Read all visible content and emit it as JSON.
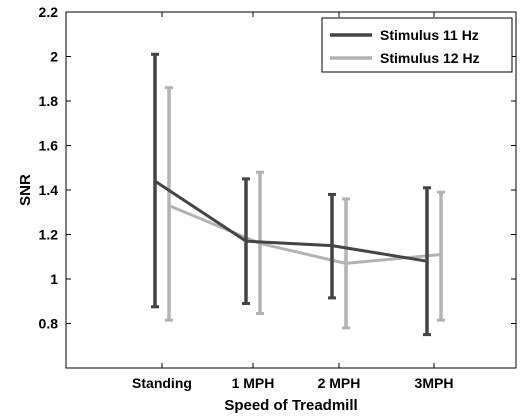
{
  "chart_data": {
    "type": "line",
    "title": "",
    "xlabel": "Speed of Treadmill",
    "ylabel": "SNR",
    "categories": [
      "Standing",
      "1 MPH",
      "2 MPH",
      "3MPH"
    ],
    "ylim": [
      0.6,
      2.2
    ],
    "yticks": [
      0.8,
      1,
      1.2,
      1.4,
      1.6,
      1.8,
      2,
      2.2
    ],
    "ytick_labels": [
      "0.8",
      "1",
      "1.2",
      "1.4",
      "1.6",
      "1.8",
      "2",
      "2.2"
    ],
    "grid": false,
    "legend_position": "top-right",
    "series": [
      {
        "name": "Stimulus 11 Hz",
        "color": "#444444",
        "values": [
          1.44,
          1.17,
          1.15,
          1.08
        ],
        "error_low": [
          0.875,
          0.89,
          0.915,
          0.75
        ],
        "error_high": [
          2.01,
          1.45,
          1.38,
          1.41
        ]
      },
      {
        "name": "Stimulus 12 Hz",
        "color": "#b3b3b3",
        "values": [
          1.33,
          1.16,
          1.07,
          1.11
        ],
        "error_low": [
          0.815,
          0.845,
          0.78,
          0.815
        ],
        "error_high": [
          1.86,
          1.48,
          1.36,
          1.39
        ]
      }
    ]
  }
}
